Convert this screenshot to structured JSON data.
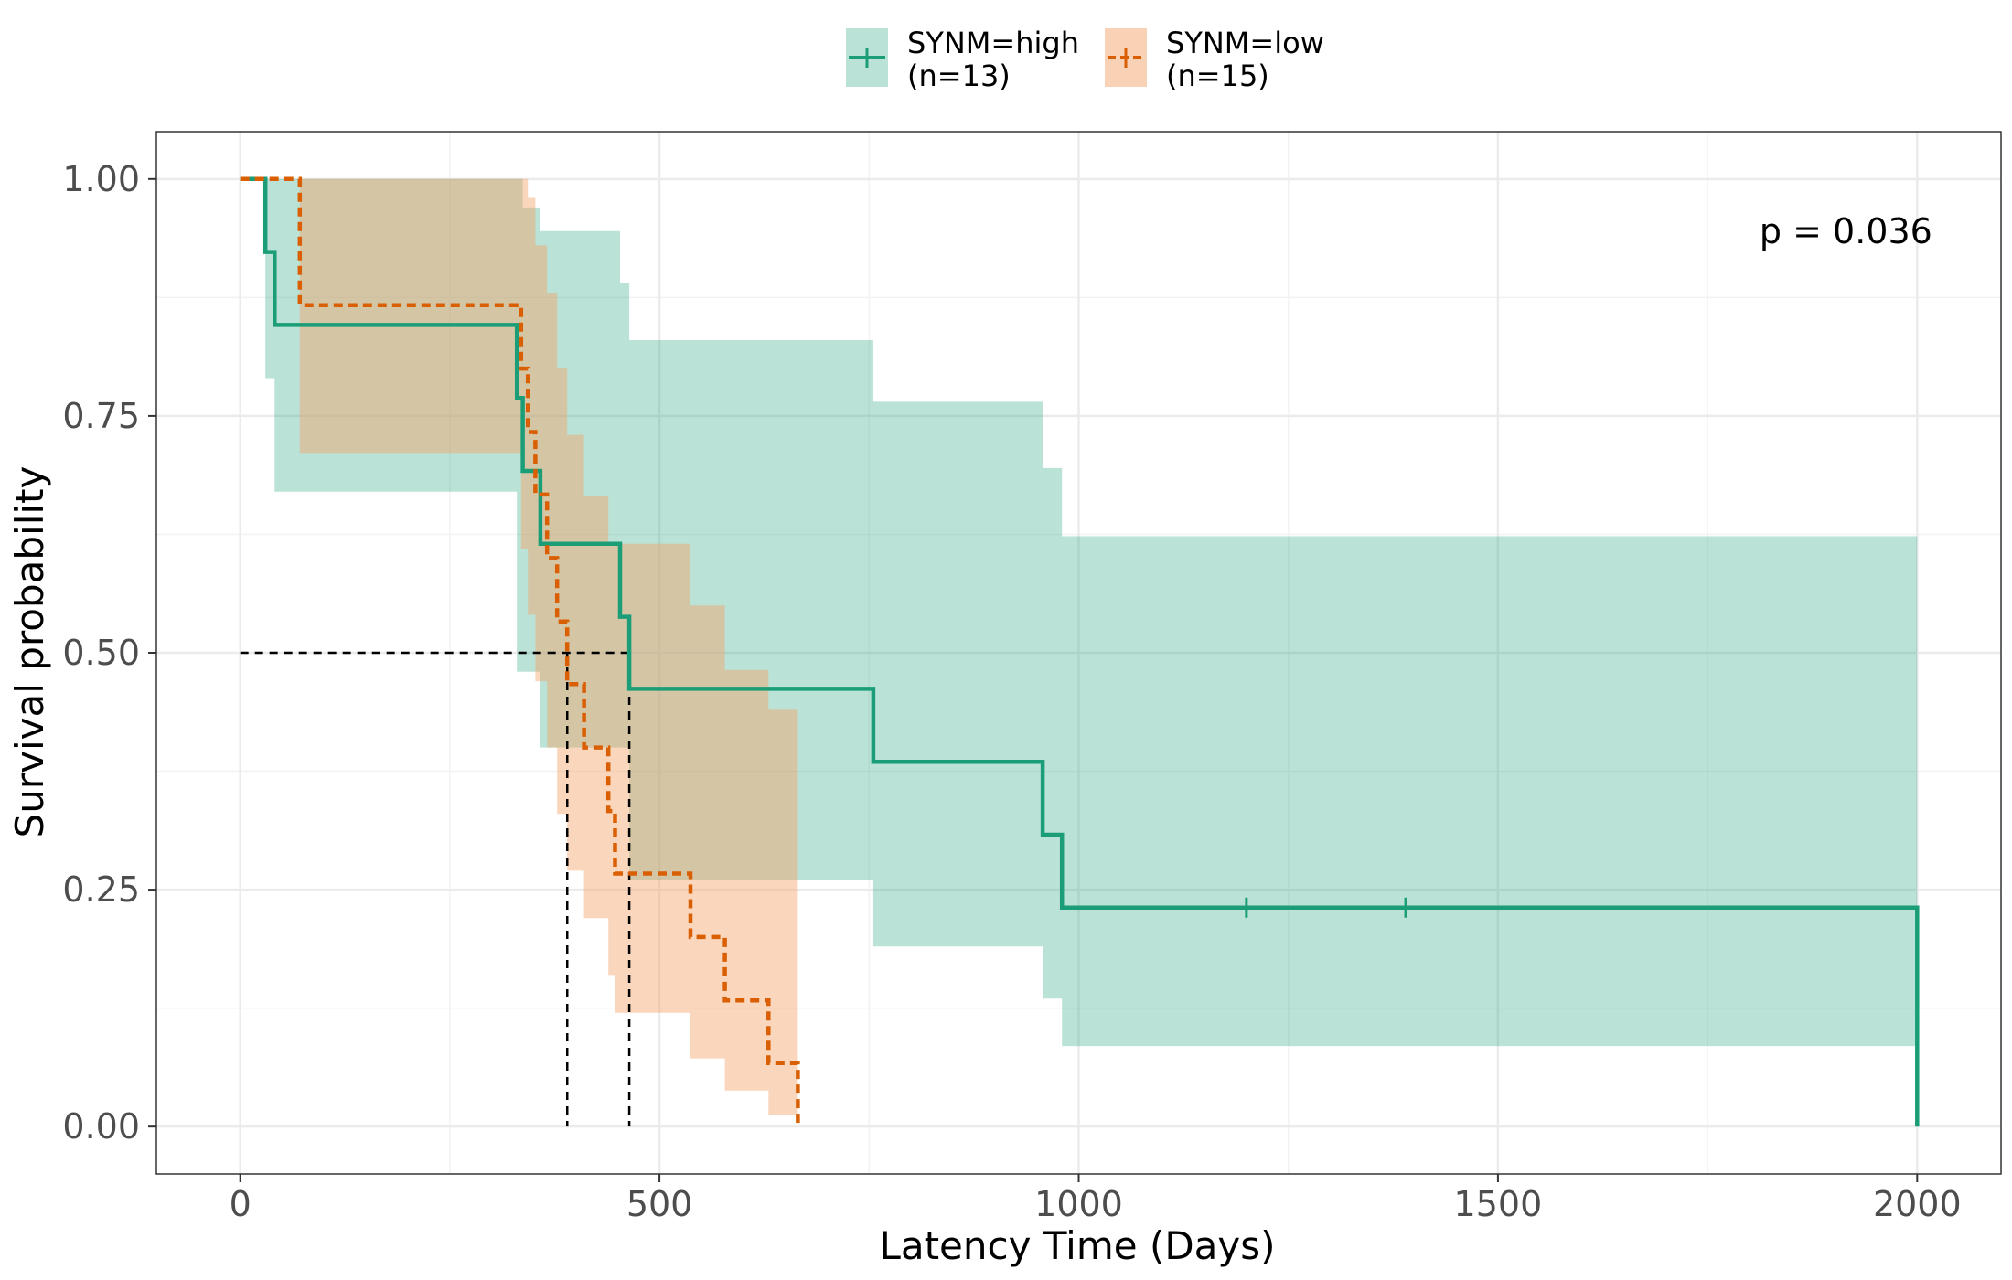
{
  "chart_data": {
    "type": "line",
    "subtype": "kaplan-meier",
    "xlabel": "Latency Time (Days)",
    "ylabel": "Survival probability",
    "xlim": [
      -100,
      2100
    ],
    "ylim": [
      -0.05,
      1.05
    ],
    "xticks": [
      0,
      500,
      1000,
      1500,
      2000
    ],
    "xtick_labels": [
      "0",
      "500",
      "1000",
      "1500",
      "2000"
    ],
    "yticks": [
      0,
      0.25,
      0.5,
      0.75,
      1
    ],
    "ytick_labels": [
      "0.00",
      "0.25",
      "0.50",
      "0.75",
      "1.00"
    ],
    "grid": true,
    "legend_position": "top",
    "annotation": "p = 0.036",
    "annotation_pos": {
      "x": 1915,
      "y": 0.945
    },
    "median_line": {
      "y": 0.5,
      "x_values": [
        390,
        464
      ]
    },
    "series": [
      {
        "name": "SYNM=high",
        "legend_line1": "SYNM=high",
        "legend_line2": "(n=13)",
        "color": "#1b9e77",
        "fill": "#1b9e77",
        "dashed": false,
        "times": [
          0,
          30,
          41,
          330,
          337,
          358,
          453,
          464,
          755,
          957,
          980,
          2000
        ],
        "surv": [
          1.0,
          0.923,
          0.846,
          0.769,
          0.692,
          0.615,
          0.538,
          0.462,
          0.385,
          0.308,
          0.231,
          0.0
        ],
        "lower": [
          1.0,
          0.79,
          0.67,
          0.48,
          0.48,
          0.4,
          0.4,
          0.26,
          0.19,
          0.135,
          0.085,
          0.085
        ],
        "upper": [
          1.0,
          1.0,
          1.0,
          1.0,
          0.97,
          0.945,
          0.89,
          0.83,
          0.765,
          0.695,
          0.623,
          0.623
        ],
        "end_time": 2000,
        "censor_times": [
          1200,
          1390
        ],
        "censor_surv": 0.231
      },
      {
        "name": "SYNM=low",
        "legend_line1": "SYNM=low",
        "legend_line2": "(n=15)",
        "color": "#d95f02",
        "fill": "#f4a46a",
        "dashed": true,
        "times": [
          0,
          71,
          335,
          343,
          352,
          366,
          378,
          390,
          410,
          439,
          447,
          537,
          578,
          630,
          665
        ],
        "surv": [
          1.0,
          0.867,
          0.8,
          0.733,
          0.667,
          0.6,
          0.533,
          0.467,
          0.4,
          0.333,
          0.267,
          0.2,
          0.133,
          0.067,
          0.0
        ],
        "lower": [
          1.0,
          0.71,
          0.61,
          0.54,
          0.47,
          0.4,
          0.33,
          0.27,
          0.22,
          0.16,
          0.12,
          0.072,
          0.038,
          0.012,
          0.012
        ],
        "upper": [
          1.0,
          1.0,
          1.0,
          0.98,
          0.93,
          0.88,
          0.8,
          0.73,
          0.665,
          0.615,
          0.615,
          0.55,
          0.482,
          0.44,
          0.44
        ],
        "end_time": 665,
        "censor_times": [],
        "censor_surv": null
      }
    ]
  }
}
